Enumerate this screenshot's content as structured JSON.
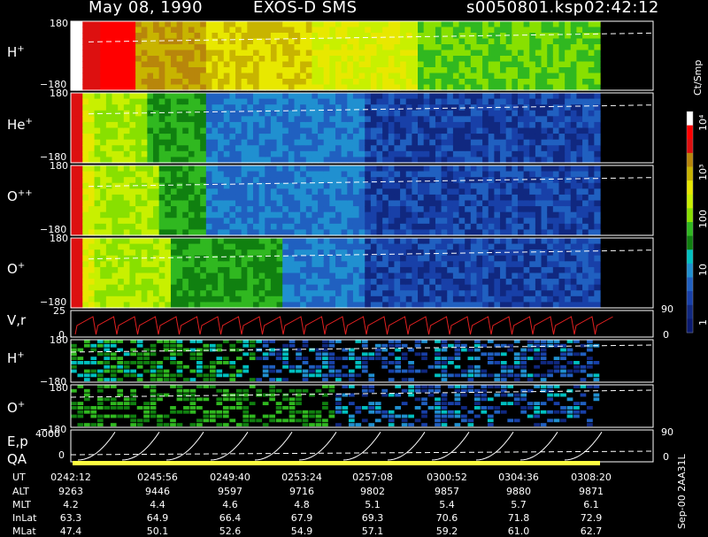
{
  "header": {
    "date": "May 08, 1990",
    "instrument": "EXOS-D SMS",
    "file": "s0050801.ksp",
    "time": "02:42:12"
  },
  "panels": [
    {
      "species": "H",
      "charge": "+",
      "ytop": "180",
      "ybot": "−180"
    },
    {
      "species": "He",
      "charge": "+",
      "ytop": "180",
      "ybot": "−180"
    },
    {
      "species": "O",
      "charge": "++",
      "ytop": "180",
      "ybot": "−180"
    },
    {
      "species": "O",
      "charge": "+",
      "ytop": "180",
      "ybot": "−180"
    }
  ],
  "vr_panel": {
    "label": "V,r",
    "ytop": "25",
    "ybot": "0",
    "rtop": "90",
    "rbot": "0"
  },
  "small_panels": [
    {
      "species": "H",
      "charge": "+",
      "ytop": "180",
      "ybot": "−180"
    },
    {
      "species": "O",
      "charge": "+",
      "ytop": "180",
      "ybot": "−180"
    }
  ],
  "ep_panel": {
    "label": "E,p",
    "ytop": "4000",
    "ybot": "0",
    "rtop": "90",
    "rbot": "0"
  },
  "qa_label": "QA",
  "colorbar": {
    "unit": "Ct/Smp",
    "labels": [
      "10⁴",
      "10³",
      "100",
      "10",
      "1"
    ],
    "colors": [
      "#ffffff",
      "#ff0000",
      "#dd1010",
      "#b8860b",
      "#c8b400",
      "#e8e800",
      "#c8f000",
      "#88e000",
      "#30b820",
      "#108010",
      "#00c0c0",
      "#2090d0",
      "#2060c0",
      "#1840a8",
      "#102880",
      "#0a1a70"
    ]
  },
  "orbit": {
    "rows": [
      "UT",
      "ALT",
      "MLT",
      "InLat",
      "MLat"
    ],
    "values": [
      [
        "0242:12",
        "0245:56",
        "0249:40",
        "0253:24",
        "0257:08",
        "0300:52",
        "0304:36",
        "0308:20"
      ],
      [
        "9263",
        "9446",
        "9597",
        "9716",
        "9802",
        "9857",
        "9880",
        "9871"
      ],
      [
        "4.2",
        "4.4",
        "4.6",
        "4.8",
        "5.1",
        "5.4",
        "5.7",
        "6.1"
      ],
      [
        "63.3",
        "64.9",
        "66.4",
        "67.9",
        "69.3",
        "70.6",
        "71.8",
        "72.9"
      ],
      [
        "47.4",
        "50.1",
        "52.6",
        "54.9",
        "57.1",
        "59.2",
        "61.0",
        "62.7"
      ]
    ]
  },
  "version_text": "Sep-00 2AA31L"
}
